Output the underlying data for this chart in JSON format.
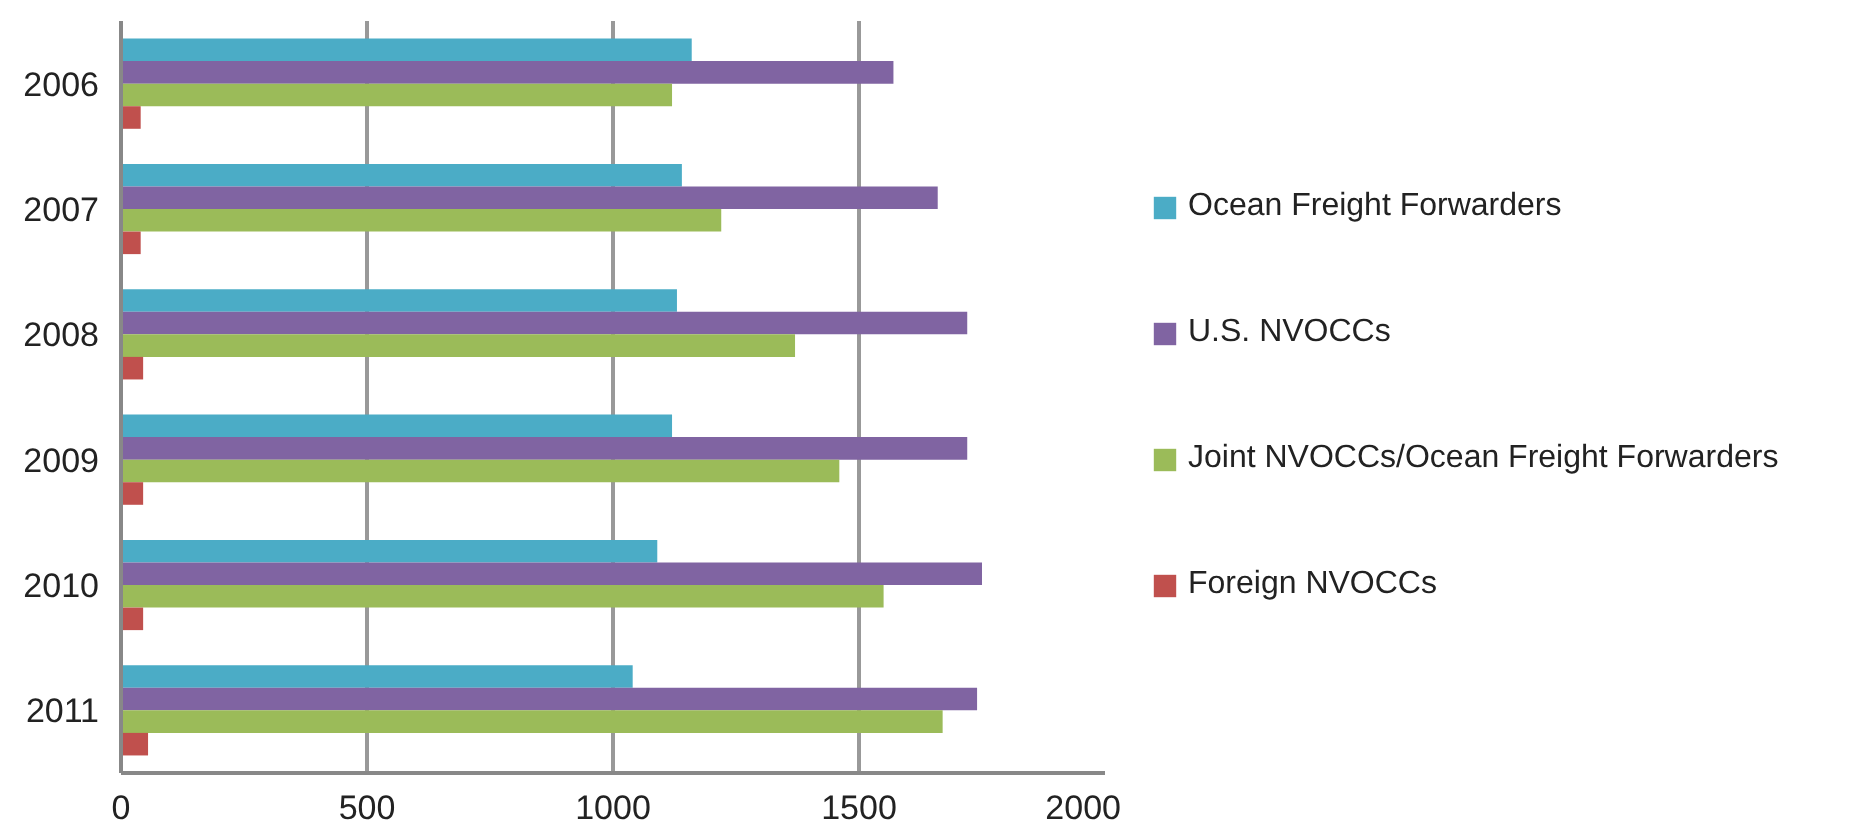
{
  "chart_data": {
    "type": "bar",
    "orientation": "horizontal",
    "categories": [
      "2006",
      "2007",
      "2008",
      "2009",
      "2010",
      "2011"
    ],
    "series": [
      {
        "name": "Ocean Freight Forwarders",
        "color": "#4bacc6",
        "values": [
          1160,
          1140,
          1130,
          1120,
          1090,
          1040
        ]
      },
      {
        "name": "U.S. NVOCCs",
        "color": "#8064a2",
        "values": [
          1570,
          1660,
          1720,
          1720,
          1750,
          1740
        ]
      },
      {
        "name": "Joint NVOCCs/Ocean Freight Forwarders",
        "color": "#9bbb59",
        "values": [
          1120,
          1220,
          1370,
          1460,
          1550,
          1670
        ]
      },
      {
        "name": "Foreign NVOCCs",
        "color": "#c0504d",
        "values": [
          40,
          40,
          45,
          45,
          45,
          55
        ]
      }
    ],
    "xlim": [
      0,
      2000
    ],
    "xticks": [
      0,
      500,
      1000,
      1500,
      2000
    ],
    "grid": "x",
    "legend": "right"
  }
}
